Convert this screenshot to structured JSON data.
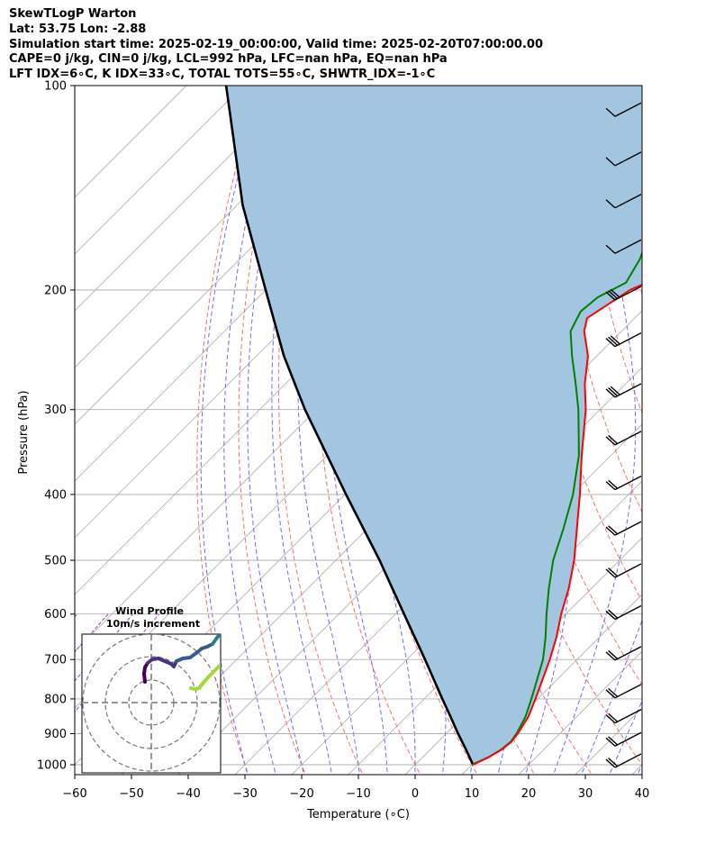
{
  "header": {
    "station": "SkewTLogP Warton",
    "location": "Lat: 53.75   Lon: -2.88",
    "times": "Simulation start time: 2025-02-19_00:00:00, Valid time: 2025-02-20T07:00:00.00",
    "indices1": "CAPE=0 j/kg, CIN=0 j/kg, LCL=992 hPa, LFC=nan hPa, EQ=nan hPa",
    "indices2": "LFT IDX=6∘C, K IDX=33∘C, TOTAL TOTS=55∘C, SHWTR_IDX=-1∘C"
  },
  "chart_data": {
    "type": "line",
    "subtype": "skew-T log-P diagram",
    "xlabel": "Temperature (∘C)",
    "ylabel": "Pressure (hPa)",
    "xlim": [
      -60,
      40
    ],
    "ylim_hPa": [
      1050,
      100
    ],
    "y_scale": "log",
    "grid": true,
    "x_ticks": [
      -60,
      -50,
      -40,
      -30,
      -20,
      -10,
      0,
      10,
      20,
      30,
      40
    ],
    "y_ticks": [
      100,
      200,
      300,
      400,
      500,
      600,
      700,
      800,
      900,
      1000
    ],
    "colors": {
      "temperature": "#ff0000",
      "dewpoint": "#008000",
      "parcel": "#000000",
      "cape_fill": "#a2c6e0",
      "dry_adiabats": "#ff6b6b",
      "moist_adiabats": "#6b6bff",
      "mixing_ratio": "#a040c0",
      "isotherms": "#b0b0b0"
    },
    "series": [
      {
        "id": "temperature",
        "points": [
          [
            1000,
            10.2
          ],
          [
            975,
            11.6
          ],
          [
            950,
            12.6
          ],
          [
            925,
            12.9
          ],
          [
            900,
            12.6
          ],
          [
            850,
            11.5
          ],
          [
            800,
            9.6
          ],
          [
            700,
            5.2
          ],
          [
            650,
            2.5
          ],
          [
            600,
            -0.8
          ],
          [
            550,
            -4.0
          ],
          [
            500,
            -8.0
          ],
          [
            450,
            -13.0
          ],
          [
            400,
            -18.6
          ],
          [
            350,
            -25.2
          ],
          [
            300,
            -32.5
          ],
          [
            275,
            -37.2
          ],
          [
            250,
            -41.6
          ],
          [
            230,
            -46.6
          ],
          [
            220,
            -48.4
          ],
          [
            200,
            -45.8
          ],
          [
            185,
            -40.6
          ],
          [
            170,
            -34.8
          ],
          [
            155,
            -30.8
          ],
          [
            140,
            -29.8
          ],
          [
            130,
            -30.0
          ],
          [
            120,
            -31.2
          ],
          [
            110,
            -33.0
          ],
          [
            100,
            -37.0
          ]
        ]
      },
      {
        "id": "dewpoint",
        "points": [
          [
            1000,
            10.0
          ],
          [
            975,
            11.6
          ],
          [
            950,
            12.5
          ],
          [
            925,
            12.8
          ],
          [
            900,
            12.4
          ],
          [
            850,
            11.0
          ],
          [
            800,
            8.9
          ],
          [
            700,
            4.0
          ],
          [
            650,
            0.6
          ],
          [
            600,
            -3.4
          ],
          [
            550,
            -7.5
          ],
          [
            500,
            -11.7
          ],
          [
            450,
            -15.4
          ],
          [
            400,
            -19.8
          ],
          [
            350,
            -25.7
          ],
          [
            300,
            -33.8
          ],
          [
            275,
            -38.8
          ],
          [
            250,
            -44.4
          ],
          [
            230,
            -49.0
          ],
          [
            215,
            -50.7
          ],
          [
            205,
            -50.2
          ],
          [
            195,
            -47.8
          ],
          [
            180,
            -49.5
          ],
          [
            170,
            -51.4
          ],
          [
            160,
            -55.1
          ],
          [
            150,
            -55.5
          ],
          [
            140,
            -54.8
          ],
          [
            130,
            -51.8
          ],
          [
            120,
            -48.9
          ],
          [
            110,
            -45.6
          ],
          [
            100,
            -42.3
          ]
        ]
      },
      {
        "id": "parcel",
        "points": [
          [
            1000,
            10.2
          ],
          [
            950,
            6.3
          ],
          [
            900,
            2.1
          ],
          [
            850,
            -2.2
          ],
          [
            800,
            -6.8
          ],
          [
            700,
            -16.8
          ],
          [
            600,
            -28.5
          ],
          [
            500,
            -42.3
          ],
          [
            400,
            -59.8
          ],
          [
            300,
            -82.0
          ],
          [
            250,
            -95.2
          ],
          [
            200,
            -110.0
          ],
          [
            150,
            -129.0
          ],
          [
            100,
            -153.0
          ]
        ]
      }
    ],
    "wind_barbs": {
      "pressures_hPa": [
        110,
        130,
        150,
        175,
        205,
        240,
        285,
        335,
        390,
        455,
        525,
        605,
        695,
        790,
        860,
        930,
        1000
      ],
      "units": "m/s"
    },
    "inset": {
      "title": "Wind Profile",
      "subtitle": "10m/s increment",
      "colormap": "viridis"
    }
  }
}
